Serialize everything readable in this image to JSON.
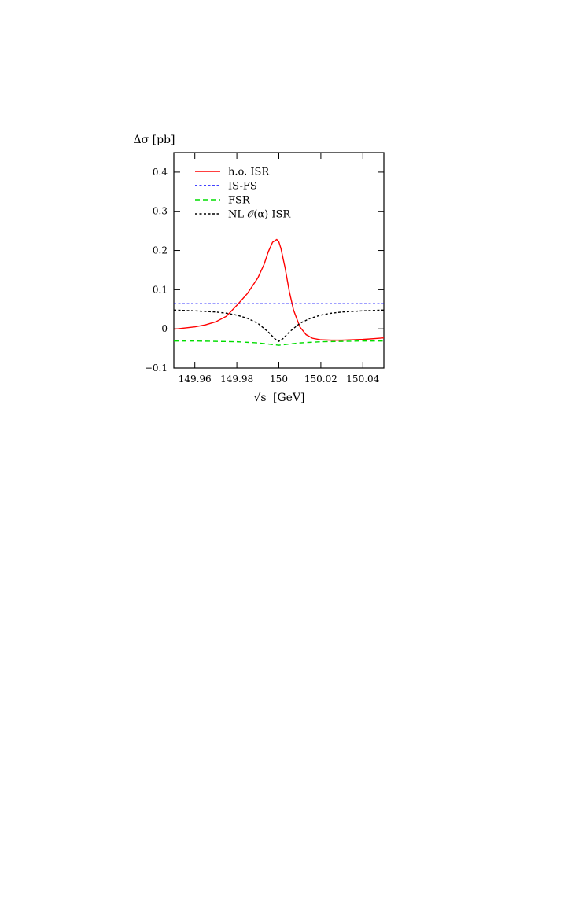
{
  "chart_data": {
    "type": "line",
    "title": "",
    "xlabel_prefix": "√s",
    "xlabel_unit": "[GeV]",
    "ylabel": "Δσ [pb]",
    "xlim": [
      149.95,
      150.05
    ],
    "ylim": [
      -0.1,
      0.45
    ],
    "xticks": [
      149.96,
      149.98,
      150.0,
      150.02,
      150.04
    ],
    "xtick_labels": [
      "149.96",
      "149.98",
      "150",
      "150.02",
      "150.04"
    ],
    "yticks": [
      -0.1,
      0,
      0.1,
      0.2,
      0.3,
      0.4
    ],
    "ytick_labels": [
      "−0.1",
      "0",
      "0.1",
      "0.2",
      "0.3",
      "0.4"
    ],
    "grid": false,
    "legend_position": "top-left",
    "series": [
      {
        "name": "h.o. ISR",
        "color": "#ff0000",
        "dash": "solid",
        "x": [
          149.95,
          149.955,
          149.96,
          149.965,
          149.97,
          149.975,
          149.98,
          149.985,
          149.99,
          149.993,
          149.995,
          149.997,
          149.999,
          150.0,
          150.001,
          150.003,
          150.005,
          150.007,
          150.01,
          150.013,
          150.016,
          150.02,
          150.025,
          150.03,
          150.035,
          150.04,
          150.045,
          150.05
        ],
        "y": [
          -0.001,
          0.002,
          0.005,
          0.01,
          0.018,
          0.032,
          0.06,
          0.09,
          0.13,
          0.165,
          0.197,
          0.221,
          0.228,
          0.222,
          0.205,
          0.155,
          0.095,
          0.048,
          0.005,
          -0.015,
          -0.024,
          -0.028,
          -0.029,
          -0.029,
          -0.028,
          -0.027,
          -0.025,
          -0.023
        ]
      },
      {
        "name": "IS-FS",
        "color": "#0000ff",
        "dash": "dotted",
        "x": [
          149.95,
          150.05
        ],
        "y": [
          0.064,
          0.064
        ]
      },
      {
        "name": "FSR",
        "color": "#00dd00",
        "dash": "dashed",
        "x": [
          149.95,
          149.96,
          149.97,
          149.98,
          149.99,
          149.995,
          150.0,
          150.005,
          150.01,
          150.02,
          150.03,
          150.04,
          150.05
        ],
        "y": [
          -0.031,
          -0.031,
          -0.032,
          -0.033,
          -0.036,
          -0.039,
          -0.042,
          -0.039,
          -0.036,
          -0.033,
          -0.032,
          -0.031,
          -0.031
        ]
      },
      {
        "name": "NL 𝒪(α) ISR",
        "color": "#000000",
        "dash": "dotted",
        "x": [
          149.95,
          149.96,
          149.97,
          149.975,
          149.98,
          149.985,
          149.99,
          149.995,
          149.998,
          150.0,
          150.002,
          150.005,
          150.01,
          150.015,
          150.02,
          150.025,
          150.03,
          150.04,
          150.05
        ],
        "y": [
          0.048,
          0.046,
          0.043,
          0.04,
          0.035,
          0.027,
          0.014,
          -0.008,
          -0.025,
          -0.032,
          -0.025,
          -0.008,
          0.014,
          0.027,
          0.035,
          0.04,
          0.043,
          0.046,
          0.048
        ]
      }
    ]
  }
}
